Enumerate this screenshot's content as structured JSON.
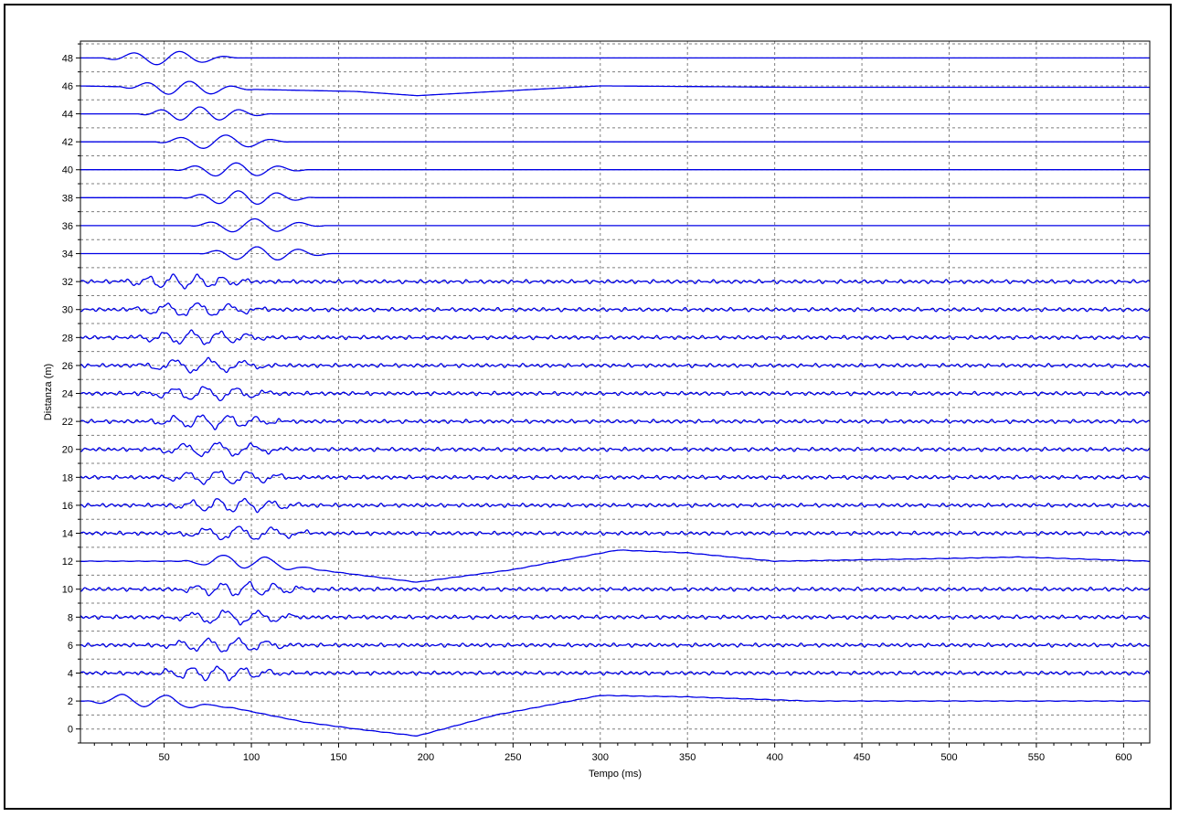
{
  "chart_data": {
    "type": "line",
    "xlabel": "Tempo (ms)",
    "ylabel": "Distanza (m)",
    "xlim": [
      2,
      615
    ],
    "ylim": [
      -1,
      49.2
    ],
    "x_ticks": [
      50,
      100,
      150,
      200,
      250,
      300,
      350,
      400,
      450,
      500,
      550,
      600
    ],
    "y_ticks": [
      0,
      2,
      4,
      6,
      8,
      10,
      12,
      14,
      16,
      18,
      20,
      22,
      24,
      26,
      28,
      30,
      32,
      34,
      36,
      38,
      40,
      42,
      44,
      46,
      48
    ],
    "grid": true,
    "trace_color": "#0000e6",
    "series": [
      {
        "offset": 48,
        "first_break_ms": 15,
        "style": "quiet",
        "drift": []
      },
      {
        "offset": 46,
        "first_break_ms": 25,
        "style": "quiet",
        "drift": [
          [
            0,
            0
          ],
          [
            160,
            -0.4
          ],
          [
            195,
            -0.7
          ],
          [
            300,
            0
          ],
          [
            410,
            -0.1
          ],
          [
            615,
            -0.1
          ]
        ]
      },
      {
        "offset": 44,
        "first_break_ms": 35,
        "style": "quiet",
        "drift": []
      },
      {
        "offset": 42,
        "first_break_ms": 45,
        "style": "quiet",
        "drift": []
      },
      {
        "offset": 40,
        "first_break_ms": 55,
        "style": "quiet",
        "drift": []
      },
      {
        "offset": 38,
        "first_break_ms": 60,
        "style": "quiet",
        "drift": []
      },
      {
        "offset": 36,
        "first_break_ms": 65,
        "style": "quiet",
        "drift": []
      },
      {
        "offset": 34,
        "first_break_ms": 70,
        "style": "quiet",
        "drift": []
      },
      {
        "offset": 32,
        "first_break_ms": 22,
        "style": "noisy",
        "drift": []
      },
      {
        "offset": 30,
        "first_break_ms": 28,
        "style": "noisy",
        "drift": []
      },
      {
        "offset": 28,
        "first_break_ms": 30,
        "style": "noisy",
        "drift": []
      },
      {
        "offset": 26,
        "first_break_ms": 32,
        "style": "noisy",
        "drift": []
      },
      {
        "offset": 24,
        "first_break_ms": 35,
        "style": "noisy",
        "drift": []
      },
      {
        "offset": 22,
        "first_break_ms": 38,
        "style": "noisy",
        "drift": []
      },
      {
        "offset": 20,
        "first_break_ms": 40,
        "style": "noisy",
        "drift": []
      },
      {
        "offset": 18,
        "first_break_ms": 45,
        "style": "noisy",
        "drift": []
      },
      {
        "offset": 16,
        "first_break_ms": 50,
        "style": "noisy",
        "drift": []
      },
      {
        "offset": 14,
        "first_break_ms": 55,
        "style": "noisy",
        "drift": []
      },
      {
        "offset": 12,
        "first_break_ms": 60,
        "style": "drift",
        "drift": [
          [
            0,
            0
          ],
          [
            100,
            0
          ],
          [
            150,
            -0.8
          ],
          [
            195,
            -1.5
          ],
          [
            250,
            -0.6
          ],
          [
            310,
            0.8
          ],
          [
            350,
            0.6
          ],
          [
            400,
            0
          ],
          [
            500,
            0.2
          ],
          [
            540,
            0.3
          ],
          [
            615,
            0
          ]
        ]
      },
      {
        "offset": 10,
        "first_break_ms": 55,
        "style": "noisy",
        "drift": []
      },
      {
        "offset": 8,
        "first_break_ms": 50,
        "style": "noisy",
        "drift": []
      },
      {
        "offset": 6,
        "first_break_ms": 45,
        "style": "noisy",
        "drift": []
      },
      {
        "offset": 4,
        "first_break_ms": 40,
        "style": "noisy",
        "drift": []
      },
      {
        "offset": 2,
        "first_break_ms": 5,
        "style": "drift",
        "drift": [
          [
            0,
            0
          ],
          [
            40,
            0.1
          ],
          [
            90,
            -0.5
          ],
          [
            130,
            -1.5
          ],
          [
            160,
            -2.0
          ],
          [
            195,
            -2.5
          ],
          [
            240,
            -1.0
          ],
          [
            300,
            0.4
          ],
          [
            350,
            0.3
          ],
          [
            420,
            0
          ],
          [
            615,
            0
          ]
        ]
      }
    ]
  }
}
